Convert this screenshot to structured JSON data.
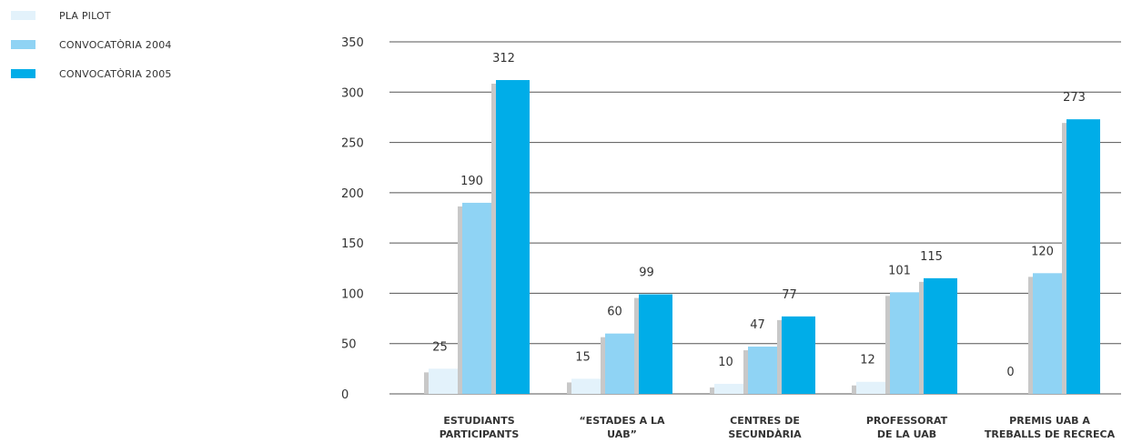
{
  "chart_data": {
    "type": "bar",
    "categories": [
      [
        "ESTUDIANTS",
        "PARTICIPANTS"
      ],
      [
        "“ESTADES A LA",
        "UAB”"
      ],
      [
        "CENTRES DE",
        "SECUNDÀRIA"
      ],
      [
        "PROFESSORAT",
        "DE LA UAB"
      ],
      [
        "PREMIS UAB A",
        "TREBALLS DE RECRECA"
      ]
    ],
    "series": [
      {
        "name": "PLA PILOT",
        "color": "#e3f2fb",
        "values": [
          25,
          15,
          10,
          12,
          0
        ]
      },
      {
        "name": "CONVOCATÒRIA 2004",
        "color": "#8fd3f4",
        "values": [
          190,
          60,
          47,
          101,
          120
        ]
      },
      {
        "name": "CONVOCATÒRIA 2005",
        "color": "#00ade8",
        "values": [
          312,
          99,
          77,
          115,
          273
        ]
      }
    ],
    "ylim": [
      0,
      350
    ],
    "yticks": [
      0,
      50,
      100,
      150,
      200,
      250,
      300,
      350
    ],
    "legend_position": "top-left",
    "grid": true
  }
}
